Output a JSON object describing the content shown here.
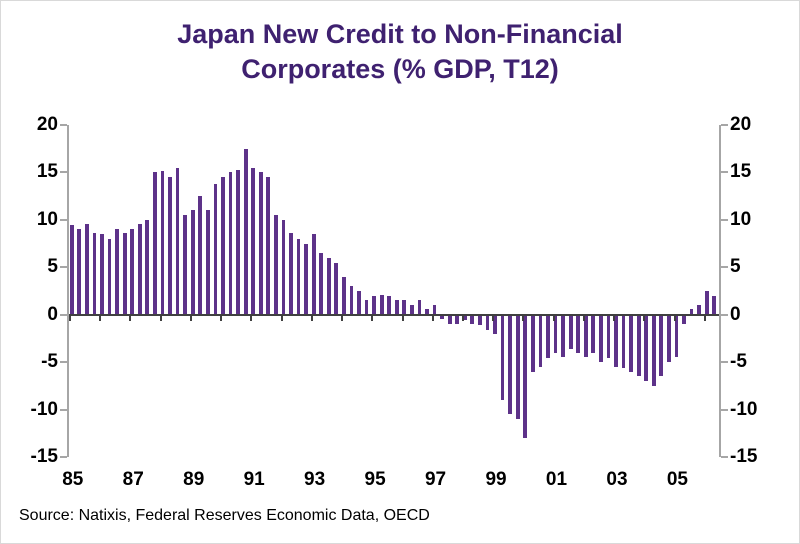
{
  "title": {
    "line1": "Japan New Credit to Non-Financial",
    "line2": "Corporates (% GDP, T12)"
  },
  "source": "Source: Natixis, Federal Reserves Economic Data, OECD",
  "colors": {
    "bar": "#5d3289",
    "title": "#3f2170",
    "axis": "#a6a6a6",
    "zero": "#404040",
    "label": "#000000"
  },
  "chart_data": {
    "type": "bar",
    "title": "Japan New Credit to Non-Financial Corporates (% GDP, T12)",
    "frequency": "quarterly",
    "start_period": "1985Q1",
    "unit": "% GDP",
    "ylim": [
      -15,
      20
    ],
    "y_ticks": [
      20,
      15,
      10,
      5,
      0,
      -5,
      -10,
      -15
    ],
    "x_tick_labels": [
      "85",
      "87",
      "89",
      "91",
      "93",
      "95",
      "97",
      "99",
      "01",
      "03",
      "05"
    ],
    "x_tick_positions": [
      0,
      8,
      16,
      24,
      32,
      40,
      48,
      56,
      64,
      72,
      80
    ],
    "legend": "none",
    "grid": "off",
    "values": [
      9.5,
      9.0,
      9.6,
      8.6,
      8.5,
      8.0,
      9.0,
      8.6,
      9.0,
      9.6,
      10.0,
      15.0,
      15.2,
      14.5,
      15.5,
      10.5,
      11.0,
      12.5,
      11.0,
      13.8,
      14.5,
      15.0,
      15.3,
      17.5,
      15.5,
      15.0,
      14.5,
      10.5,
      10.0,
      8.6,
      8.0,
      7.5,
      8.5,
      6.5,
      6.0,
      5.5,
      4.0,
      3.0,
      2.5,
      1.6,
      2.0,
      2.1,
      2.0,
      1.6,
      1.5,
      1.0,
      1.5,
      0.6,
      1.0,
      -0.5,
      -1.0,
      -1.0,
      -0.6,
      -1.0,
      -1.1,
      -1.6,
      -2.0,
      -9.0,
      -10.5,
      -11.0,
      -13.0,
      -6.0,
      -5.5,
      -4.6,
      -4.0,
      -4.5,
      -3.6,
      -4.0,
      -4.5,
      -4.0,
      -5.0,
      -4.6,
      -5.5,
      -5.6,
      -6.0,
      -6.5,
      -7.0,
      -7.5,
      -6.5,
      -5.0,
      -4.5,
      -1.0,
      0.6,
      1.0,
      2.5,
      2.0
    ]
  }
}
